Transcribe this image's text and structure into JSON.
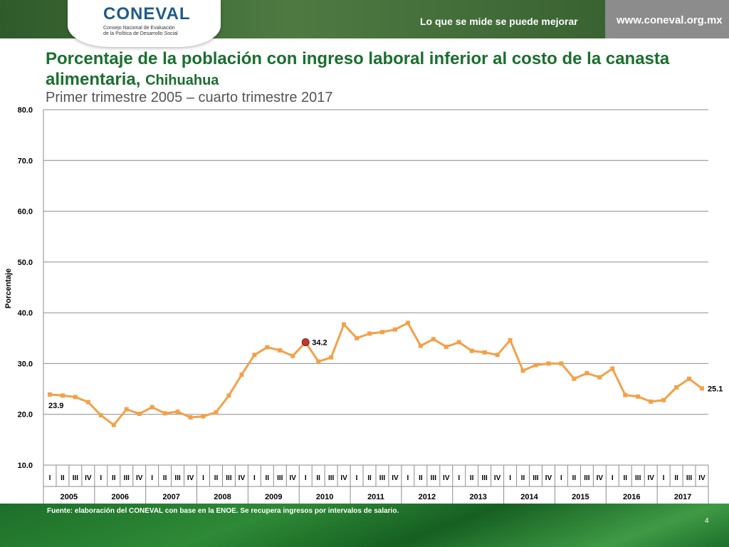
{
  "header": {
    "logo_text": "CONEVAL",
    "logo_subtitle_1": "Consejo Nacional de Evaluación",
    "logo_subtitle_2": "de la Política de Desarrollo Social",
    "tagline": "Lo que se mide se puede mejorar",
    "url": "www.coneval.org.mx"
  },
  "footer": {
    "source": "Fuente: elaboración del CONEVAL con base en la ENOE. Se recupera ingresos por intervalos de salario.",
    "page_number": "4"
  },
  "colors": {
    "title": "#1b6e30",
    "line": "#f4a04a",
    "highlight": "#c0392b",
    "header": "#3f6a36",
    "footer": "#1d6e2a"
  },
  "chart_data": {
    "type": "line",
    "title": "Porcentaje de la población con ingreso laboral inferior al costo de la canasta alimentaria,",
    "title_region": "Chihuahua",
    "subtitle": "Primer trimestre 2005 – cuarto trimestre 2017",
    "ylabel": "Porcentaje",
    "xlabel": "",
    "ylim": [
      10,
      80
    ],
    "yticks": [
      "10.0",
      "20.0",
      "30.0",
      "40.0",
      "50.0",
      "60.0",
      "70.0",
      "80.0"
    ],
    "grid": true,
    "legend": "none",
    "quarter_labels": [
      "I",
      "II",
      "III",
      "IV"
    ],
    "years": [
      "2005",
      "2006",
      "2007",
      "2008",
      "2009",
      "2010",
      "2011",
      "2012",
      "2013",
      "2014",
      "2015",
      "2016",
      "2017"
    ],
    "series": [
      {
        "values": [
          23.9,
          23.7,
          23.4,
          22.4,
          19.8,
          17.9,
          21.0,
          20.1,
          21.4,
          20.2,
          20.5,
          19.4,
          19.6,
          20.4,
          23.7,
          27.8,
          31.7,
          33.2,
          32.6,
          31.5,
          34.2,
          30.4,
          31.2,
          37.7,
          35.0,
          35.9,
          36.2,
          36.7,
          38.0,
          33.5,
          34.8,
          33.3,
          34.2,
          32.5,
          32.2,
          31.7,
          34.6,
          28.6,
          29.7,
          30.0,
          30.0,
          27.0,
          28.1,
          27.3,
          29.0,
          23.8,
          23.5,
          22.5,
          22.8,
          25.3,
          27.0,
          25.1
        ]
      }
    ],
    "annotations": [
      {
        "index": 0,
        "label": "23.9"
      },
      {
        "index": 20,
        "label": "34.2",
        "highlight": true
      },
      {
        "index": 51,
        "label": "25.1"
      }
    ]
  }
}
